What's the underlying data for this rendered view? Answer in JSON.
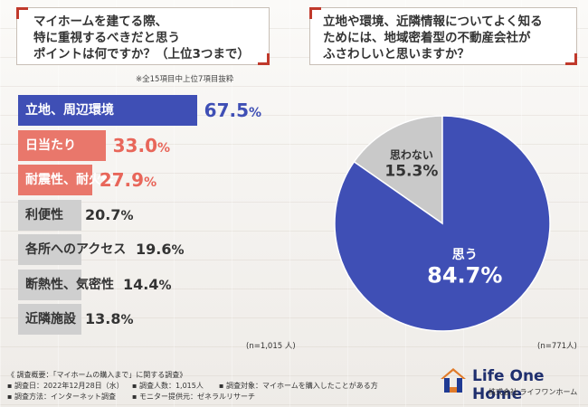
{
  "question_left": {
    "lines": [
      "マイホームを建てる際、",
      "特に重視するべきだと思う",
      "ポイントは何ですか？（上位3つまで）"
    ],
    "note": "※全15項目中上位7項目抜粋"
  },
  "question_right": {
    "lines": [
      "立地や環境、近隣情報についてよく知る",
      "ためには、地域密着型の不動産会社が",
      "ふさわしいと思いますか？"
    ]
  },
  "colors": {
    "top": "#3f4fb5",
    "top_text": "#3f4fb5",
    "mid": "#e9776b",
    "mid_text": "#e8665a",
    "low": "#cfcfcf",
    "low_text": "#333333"
  },
  "chart_data": [
    {
      "type": "bar",
      "orientation": "horizontal",
      "categories": [
        "立地、周辺環境",
        "日当たり",
        "耐震性、耐火性",
        "利便性",
        "各所へのアクセス",
        "断熱性、気密性",
        "近隣施設"
      ],
      "values": [
        67.5,
        33.0,
        27.9,
        20.7,
        19.6,
        14.4,
        13.8
      ],
      "value_labels": [
        "67.5%",
        "33.0%",
        "27.9%",
        "20.7%",
        "19.6%",
        "14.4%",
        "13.8%"
      ],
      "n_label": "(n=1,015 人)"
    },
    {
      "type": "pie",
      "labels": [
        "思う",
        "思わない"
      ],
      "values": [
        84.7,
        15.3
      ],
      "value_labels": [
        "84.7%",
        "15.3%"
      ],
      "colors": [
        "#3f4fb5",
        "#c9c9c9"
      ],
      "n_label": "(n=771人)"
    }
  ],
  "footer": {
    "title": "《 調査概要：「マイホームの購入まで」に関する調査》",
    "date": "▪ 調査日：2022年12月28日（水）",
    "method": "▪ 調査方法：インターネット調査",
    "count": "▪ 調査人数：1,015人",
    "provider": "▪ モニター提供元：ゼネラルリサーチ",
    "target": "▪ 調査対象：マイホームを購入したことがある方"
  },
  "logo": {
    "name": "Life One Home",
    "sub": "株式会社 ライフワンホーム",
    "icon": "house-logo-icon"
  }
}
